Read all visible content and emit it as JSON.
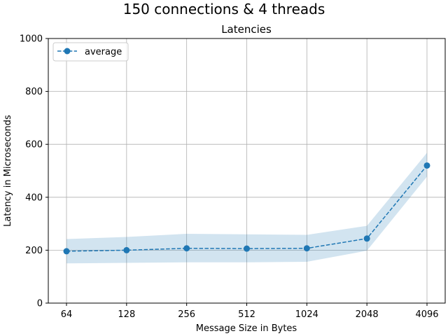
{
  "chart_data": {
    "type": "line",
    "suptitle": "150 connections & 4 threads",
    "title": "Latencies",
    "xlabel": "Message Size in Bytes",
    "ylabel": "Latency in Microseconds",
    "categories": [
      "64",
      "128",
      "256",
      "512",
      "1024",
      "2048",
      "4096"
    ],
    "ylim": [
      0,
      1000
    ],
    "yticks": [
      0,
      200,
      400,
      600,
      800,
      1000
    ],
    "grid": true,
    "legend_position": "top-left",
    "colors": {
      "line": "#1f77b4",
      "band": "#1f77b4"
    },
    "series": [
      {
        "name": "average",
        "values": [
          196,
          200,
          207,
          206,
          207,
          244,
          520
        ],
        "band_upper": [
          242,
          250,
          262,
          260,
          258,
          292,
          568
        ],
        "band_lower": [
          150,
          152,
          154,
          154,
          156,
          198,
          478
        ]
      }
    ]
  }
}
